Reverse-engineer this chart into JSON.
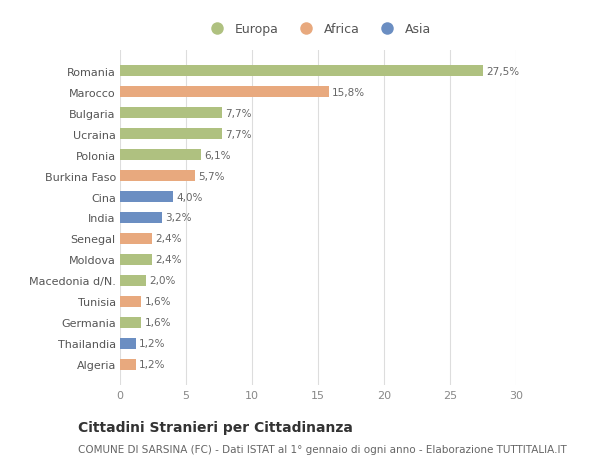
{
  "categories": [
    "Romania",
    "Marocco",
    "Bulgaria",
    "Ucraina",
    "Polonia",
    "Burkina Faso",
    "Cina",
    "India",
    "Senegal",
    "Moldova",
    "Macedonia d/N.",
    "Tunisia",
    "Germania",
    "Thailandia",
    "Algeria"
  ],
  "values": [
    27.5,
    15.8,
    7.7,
    7.7,
    6.1,
    5.7,
    4.0,
    3.2,
    2.4,
    2.4,
    2.0,
    1.6,
    1.6,
    1.2,
    1.2
  ],
  "labels": [
    "27,5%",
    "15,8%",
    "7,7%",
    "7,7%",
    "6,1%",
    "5,7%",
    "4,0%",
    "3,2%",
    "2,4%",
    "2,4%",
    "2,0%",
    "1,6%",
    "1,6%",
    "1,2%",
    "1,2%"
  ],
  "continents": [
    "Europa",
    "Africa",
    "Europa",
    "Europa",
    "Europa",
    "Africa",
    "Asia",
    "Asia",
    "Africa",
    "Europa",
    "Europa",
    "Africa",
    "Europa",
    "Asia",
    "Africa"
  ],
  "colors": {
    "Europa": "#afc180",
    "Africa": "#e8a97e",
    "Asia": "#6b8ec2"
  },
  "xlim": [
    0,
    30
  ],
  "xticks": [
    0,
    5,
    10,
    15,
    20,
    25,
    30
  ],
  "title": "Cittadini Stranieri per Cittadinanza",
  "subtitle": "COMUNE DI SARSINA (FC) - Dati ISTAT al 1° gennaio di ogni anno - Elaborazione TUTTITALIA.IT",
  "background_color": "#ffffff",
  "plot_background": "#ffffff",
  "grid_color": "#dddddd",
  "bar_height": 0.55,
  "label_fontsize": 7.5,
  "tick_fontsize": 8,
  "title_fontsize": 10,
  "subtitle_fontsize": 7.5
}
